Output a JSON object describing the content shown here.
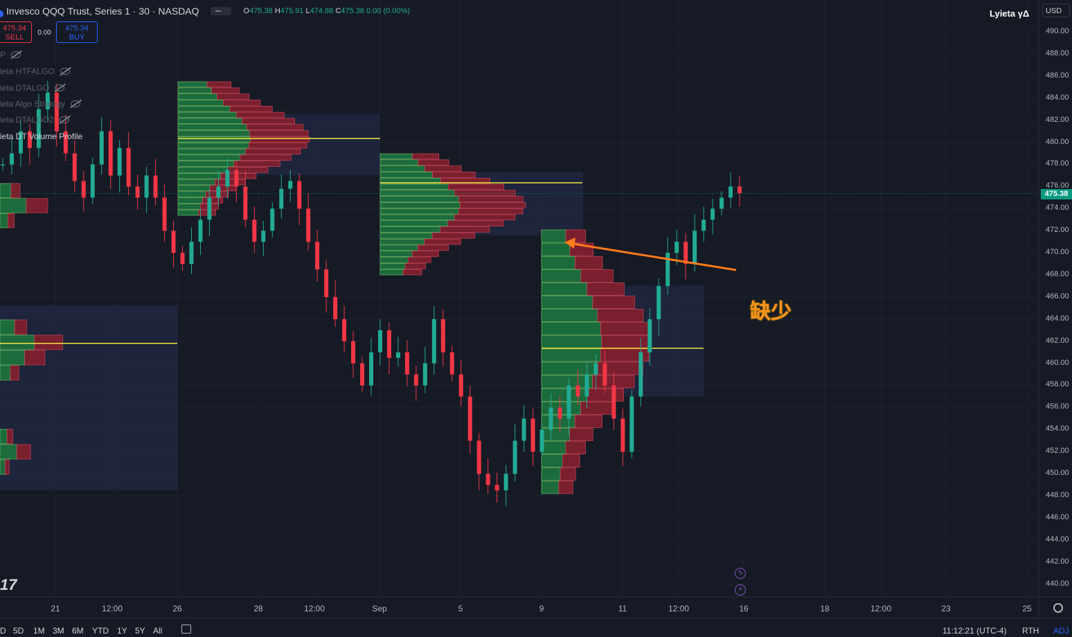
{
  "header": {
    "title": "Invesco QQQ Trust, Series 1 · 30 · NASDAQ",
    "ohlc": {
      "o_label": "O",
      "o": "475.38",
      "h_label": "H",
      "h": "475.91",
      "l_label": "L",
      "l": "474.88",
      "c_label": "C",
      "c": "475.38",
      "change": "0.00 (0.00%)"
    },
    "sell_price": "475.34",
    "sell_label": "SELL",
    "buy_price": "475.34",
    "buy_label": "BUY",
    "spread": "0.00"
  },
  "indicators": [
    {
      "label": "P"
    },
    {
      "label": "ieta HTFALGO"
    },
    {
      "label": "ieta DTALGO"
    },
    {
      "label": "ieta Algo Strategy"
    },
    {
      "label": "ieta DTALGO2"
    },
    {
      "label": "ieta DT Volume Profile"
    }
  ],
  "brand": "Lyieta γΔ",
  "currency": "USD",
  "price_axis": [
    "490.00",
    "488.00",
    "486.00",
    "484.00",
    "482.00",
    "480.00",
    "478.00",
    "476.00",
    "474.00",
    "472.00",
    "470.00",
    "468.00",
    "466.00",
    "464.00",
    "462.00",
    "460.00",
    "458.00",
    "456.00",
    "454.00",
    "452.00",
    "450.00",
    "448.00",
    "446.00",
    "444.00",
    "442.00",
    "440.00"
  ],
  "last_price": "475.38",
  "time_axis": [
    "21",
    "12:00",
    "26",
    "28",
    "12:00",
    "Sep",
    "5",
    "9",
    "11",
    "12:00",
    "16",
    "18",
    "12:00",
    "23",
    "25"
  ],
  "ranges": [
    "D",
    "5D",
    "1M",
    "3M",
    "6M",
    "YTD",
    "1Y",
    "5Y",
    "All"
  ],
  "status": {
    "time": "11:12:21 (UTC-4)",
    "session": "RTH",
    "adj": "ADJ"
  },
  "annotation_text": "缺少",
  "colors": {
    "up": "#22ab94",
    "down": "#f23645",
    "poc": "#f5e63c",
    "arrow": "#ff7a1a",
    "annotation": "#f7931a",
    "bg": "#161a25"
  },
  "icons": [
    "eye-off-icon",
    "gear-icon",
    "calendar-icon",
    "lightning-icon",
    "plus-event-icon",
    "tradingview-logo-icon"
  ],
  "chart_data": {
    "type": "candlestick",
    "symbol": "QQQ",
    "interval": "30",
    "ylim": [
      440,
      490
    ],
    "last": 475.38,
    "volume_profile_pocs": [
      480.4,
      476.3,
      461.5,
      461.8
    ],
    "volume_profile_value_areas": [
      [
        477,
        482.5
      ],
      [
        472,
        477.3
      ],
      [
        457.2,
        467.2
      ],
      [
        448.5,
        465.3
      ]
    ],
    "price_path": [
      478,
      479,
      481,
      479.5,
      483,
      484.5,
      481,
      479,
      476.5,
      475,
      478,
      481,
      477,
      479.5,
      476,
      475,
      477,
      475,
      472,
      470,
      469,
      471,
      473,
      475,
      476,
      477.5,
      476,
      473,
      471,
      472,
      474,
      475.8,
      476.5,
      474,
      471,
      468.5,
      466,
      464,
      462,
      460,
      458,
      461,
      463,
      460.5,
      461,
      459,
      458,
      460,
      464,
      461,
      459,
      457,
      453,
      450,
      449,
      448.5,
      450,
      453,
      455,
      452,
      454,
      456,
      455,
      458,
      457,
      459,
      460,
      458,
      455,
      452,
      457,
      461,
      464,
      467,
      470,
      471,
      469,
      472,
      473,
      474,
      475,
      476,
      475.4
    ],
    "annotation_arrow": {
      "from": [
        1063,
        390
      ],
      "to": [
        815,
        350
      ]
    }
  }
}
